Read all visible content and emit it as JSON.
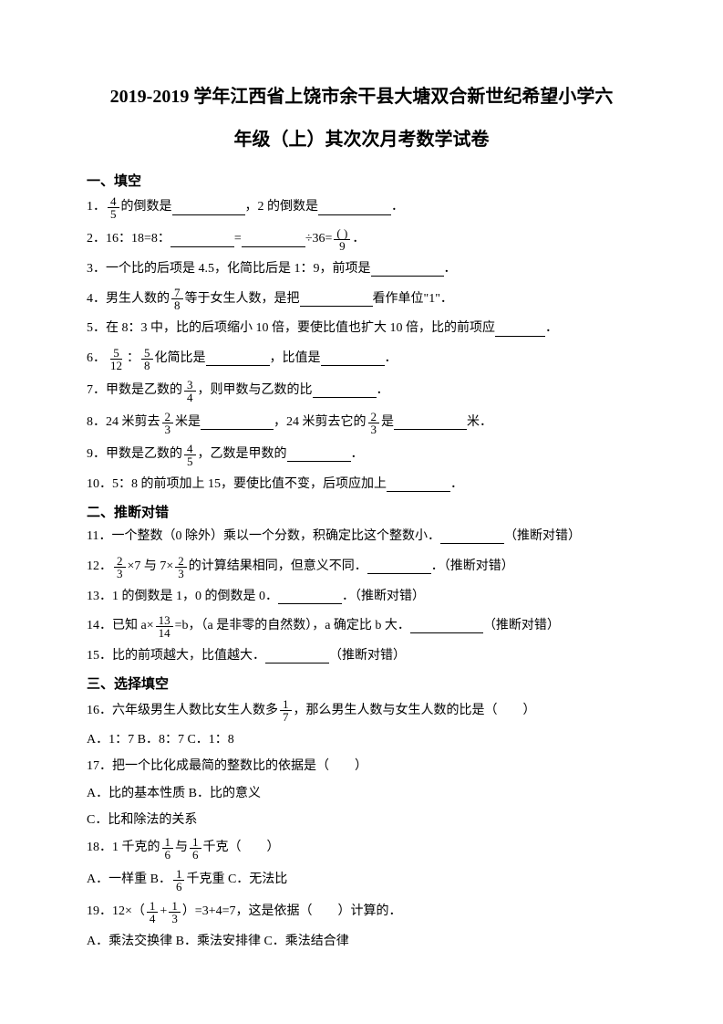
{
  "title": {
    "line1": "2019-2019 学年江西省上饶市余干县大塘双合新世纪希望小学六",
    "line2": "年级（上）其次次月考数学试卷"
  },
  "sections": {
    "s1": "一、填空",
    "s2": "二、推断对错",
    "s3": "三、选择填空"
  },
  "q1": {
    "t1": "1．",
    "f1n": "4",
    "f1d": "5",
    "t2": "的倒数是",
    "t3": "，2 的倒数是",
    "t4": "．"
  },
  "q2": {
    "t1": "2．16：18=8：",
    "t2": "=",
    "t3": "÷36=",
    "f1n": "( )",
    "f1d": "9",
    "t4": "．"
  },
  "q3": {
    "t1": "3．一个比的后项是 4.5，化简比后是 1：9，前项是",
    "t2": "．"
  },
  "q4": {
    "t1": "4．男生人数的",
    "f1n": "7",
    "f1d": "8",
    "t2": "等于女生人数，是把",
    "t3": "看作单位\"1\"．"
  },
  "q5": {
    "t1": "5．在 8：3 中，比的后项缩小 10 倍，要使比值也扩大 10 倍，比的前项应",
    "t2": "．"
  },
  "q6": {
    "t1": "6．",
    "f1n": "5",
    "f1d": "12",
    "t2": "：",
    "f2n": "5",
    "f2d": "8",
    "t3": "化简比是",
    "t4": "，比值是",
    "t5": "．"
  },
  "q7": {
    "t1": "7．甲数是乙数的",
    "f1n": "3",
    "f1d": "4",
    "t2": "，则甲数与乙数的比",
    "t3": "．"
  },
  "q8": {
    "t1": "8．24 米剪去",
    "f1n": "2",
    "f1d": "3",
    "t2": "米是",
    "t3": "，24 米剪去它的",
    "f2n": "2",
    "f2d": "3",
    "t4": "是",
    "t5": "米．"
  },
  "q9": {
    "t1": "9．甲数是乙数的",
    "f1n": "4",
    "f1d": "5",
    "t2": "，乙数是甲数的",
    "t3": "．"
  },
  "q10": {
    "t1": "10．5：8 的前项加上 15，要使比值不变，后项应加上",
    "t2": "．"
  },
  "q11": {
    "t1": "11．一个整数（0 除外）乘以一个分数，积确定比这个整数小．",
    "t2": "（推断对错）"
  },
  "q12": {
    "t1": "12．",
    "f1n": "2",
    "f1d": "3",
    "t2": "×7 与 7×",
    "f2n": "2",
    "f2d": "3",
    "t3": "的计算结果相同，但意义不同．",
    "t4": "．（推断对错）"
  },
  "q13": {
    "t1": "13．1 的倒数是 1，0 的倒数是 0．",
    "t2": "．（推断对错）"
  },
  "q14": {
    "t1": "14．已知 a×",
    "f1n": "13",
    "f1d": "14",
    "t2": "=b，（a 是非零的自然数），a 确定比 b 大．",
    "t3": "（推断对错）"
  },
  "q15": {
    "t1": "15．比的前项越大，比值越大．",
    "t2": "（推断对错）"
  },
  "q16": {
    "t1": "16．六年级男生人数比女生人数多",
    "f1n": "1",
    "f1d": "7",
    "t2": "，那么男生人数与女生人数的比是（　　）",
    "opts": "A．1：7 B．8：7 C．1：8"
  },
  "q17": {
    "t1": "17．把一个比化成最简的整数比的依据是（　　）",
    "optA": "A．比的基本性质 B．比的意义",
    "optC": "C．比和除法的关系"
  },
  "q18": {
    "t1": "18．1 千克的",
    "f1n": "1",
    "f1d": "6",
    "t2": "与",
    "f2n": "1",
    "f2d": "6",
    "t3": "千克（　　）",
    "optA": "A．一样重 B．",
    "f3n": "1",
    "f3d": "6",
    "optB": "千克重 C．无法比"
  },
  "q19": {
    "t1": "19．12×（",
    "f1n": "1",
    "f1d": "4",
    "t2": "+",
    "f2n": "1",
    "f2d": "3",
    "t3": "）=3+4=7，这是依据（　　）计算的．",
    "opts": "A．乘法交换律 B．乘法安排律 C．乘法结合律"
  }
}
